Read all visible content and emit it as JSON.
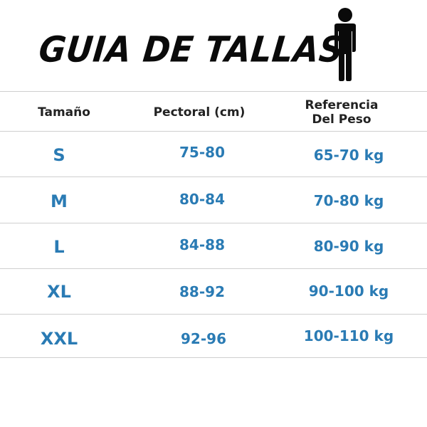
{
  "title": "GUIA DE TALLAS",
  "icon": "person-icon",
  "accent_color": "#2a7bb4",
  "table": {
    "headers": [
      "Tamaño",
      "Pectoral (cm)",
      "Referencia Del Peso"
    ],
    "header_ref_line1": "Referencia",
    "header_ref_line2": "Del Peso",
    "rows": [
      {
        "size": "S",
        "chest": "75-80",
        "weight": "65-70 kg"
      },
      {
        "size": "M",
        "chest": "80-84",
        "weight": "70-80 kg"
      },
      {
        "size": "L",
        "chest": "84-88",
        "weight": "80-90 kg"
      },
      {
        "size": "XL",
        "chest": "88-92",
        "weight": "90-100 kg"
      },
      {
        "size": "XXL",
        "chest": "92-96",
        "weight": "100-110 kg"
      }
    ]
  }
}
